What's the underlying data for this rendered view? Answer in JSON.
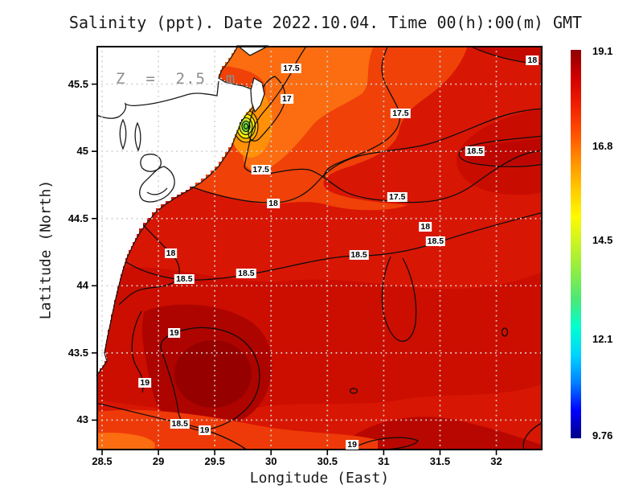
{
  "title": "Salinity (ppt). Date 2022.10.04. Time 00(h):00(m) GMT",
  "annotation": "Z  =  2.5  m",
  "axes": {
    "x_label": "Longitude (East)",
    "y_label": "Latitude (North)",
    "x_ticks": [
      "28.5",
      "29",
      "29.5",
      "30",
      "30.5",
      "31",
      "31.5",
      "32"
    ],
    "y_ticks": [
      "45.5",
      "45",
      "44.5",
      "44",
      "43.5",
      "43"
    ]
  },
  "colorbar": {
    "labels": [
      "19.1",
      "16.8",
      "14.5",
      "12.1",
      "9.76"
    ],
    "min": 9.76,
    "max": 19.1,
    "colors_bottom_to_top": [
      "#000085",
      "#0000ff",
      "#0080ff",
      "#00d4ff",
      "#00ffd0",
      "#4be878",
      "#8ced45",
      "#c9f325",
      "#fffa00",
      "#ffc800",
      "#ff9000",
      "#ff5000",
      "#f02000",
      "#d00000",
      "#8f0000"
    ]
  },
  "chart_data": {
    "type": "heatmap",
    "title": "Salinity (ppt). Date 2022.10.04. Time 00(h):00(m) GMT",
    "xlabel": "Longitude (East)",
    "ylabel": "Latitude (North)",
    "units": "ppt",
    "depth_label": "Z = 2.5 m",
    "x_range": [
      28.45,
      32.41
    ],
    "y_range": [
      42.775,
      45.785
    ],
    "value_range": [
      9.76,
      19.1
    ],
    "colorbar_ticks": [
      19.1,
      16.8,
      14.5,
      12.1,
      9.76
    ],
    "contour_levels": [
      17,
      17.5,
      18,
      18.5,
      19
    ],
    "grid": "dotted",
    "legend_position": "right-colorbar",
    "contour_labels": [
      {
        "v": "17.5",
        "lon": 30.18,
        "lat": 45.617
      },
      {
        "v": "17",
        "lon": 30.14,
        "lat": 45.39
      },
      {
        "v": "17.5",
        "lon": 29.91,
        "lat": 44.863
      },
      {
        "v": "17.5",
        "lon": 31.15,
        "lat": 45.28
      },
      {
        "v": "18",
        "lon": 32.32,
        "lat": 45.68
      },
      {
        "v": "18.5",
        "lon": 31.81,
        "lat": 45.0
      },
      {
        "v": "17.5",
        "lon": 31.12,
        "lat": 44.66
      },
      {
        "v": "18",
        "lon": 30.02,
        "lat": 44.61
      },
      {
        "v": "18",
        "lon": 31.37,
        "lat": 44.44
      },
      {
        "v": "18.5",
        "lon": 31.46,
        "lat": 44.33
      },
      {
        "v": "18.5",
        "lon": 30.78,
        "lat": 44.23
      },
      {
        "v": "18",
        "lon": 29.11,
        "lat": 44.24
      },
      {
        "v": "18.5",
        "lon": 29.78,
        "lat": 44.09
      },
      {
        "v": "18.5",
        "lon": 29.23,
        "lat": 44.05
      },
      {
        "v": "19",
        "lon": 29.14,
        "lat": 43.65
      },
      {
        "v": "19",
        "lon": 28.88,
        "lat": 43.28
      },
      {
        "v": "18.5",
        "lon": 29.19,
        "lat": 42.975
      },
      {
        "v": "19",
        "lon": 29.41,
        "lat": 42.925
      },
      {
        "v": "19",
        "lon": 30.72,
        "lat": 42.795
      }
    ]
  }
}
